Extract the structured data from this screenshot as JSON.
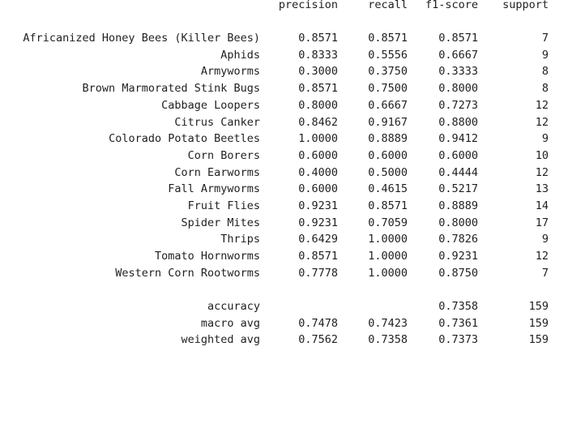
{
  "headers": {
    "precision": "precision",
    "recall": "recall",
    "f1": "f1-score",
    "support": "support"
  },
  "classes": [
    {
      "label": "Africanized Honey Bees (Killer Bees)",
      "precision": "0.8571",
      "recall": "0.8571",
      "f1": "0.8571",
      "support": "7"
    },
    {
      "label": "Aphids",
      "precision": "0.8333",
      "recall": "0.5556",
      "f1": "0.6667",
      "support": "9"
    },
    {
      "label": "Armyworms",
      "precision": "0.3000",
      "recall": "0.3750",
      "f1": "0.3333",
      "support": "8"
    },
    {
      "label": "Brown Marmorated Stink Bugs",
      "precision": "0.8571",
      "recall": "0.7500",
      "f1": "0.8000",
      "support": "8"
    },
    {
      "label": "Cabbage Loopers",
      "precision": "0.8000",
      "recall": "0.6667",
      "f1": "0.7273",
      "support": "12"
    },
    {
      "label": "Citrus Canker",
      "precision": "0.8462",
      "recall": "0.9167",
      "f1": "0.8800",
      "support": "12"
    },
    {
      "label": "Colorado Potato Beetles",
      "precision": "1.0000",
      "recall": "0.8889",
      "f1": "0.9412",
      "support": "9"
    },
    {
      "label": "Corn Borers",
      "precision": "0.6000",
      "recall": "0.6000",
      "f1": "0.6000",
      "support": "10"
    },
    {
      "label": "Corn Earworms",
      "precision": "0.4000",
      "recall": "0.5000",
      "f1": "0.4444",
      "support": "12"
    },
    {
      "label": "Fall Armyworms",
      "precision": "0.6000",
      "recall": "0.4615",
      "f1": "0.5217",
      "support": "13"
    },
    {
      "label": "Fruit Flies",
      "precision": "0.9231",
      "recall": "0.8571",
      "f1": "0.8889",
      "support": "14"
    },
    {
      "label": "Spider Mites",
      "precision": "0.9231",
      "recall": "0.7059",
      "f1": "0.8000",
      "support": "17"
    },
    {
      "label": "Thrips",
      "precision": "0.6429",
      "recall": "1.0000",
      "f1": "0.7826",
      "support": "9"
    },
    {
      "label": "Tomato Hornworms",
      "precision": "0.8571",
      "recall": "1.0000",
      "f1": "0.9231",
      "support": "12"
    },
    {
      "label": "Western Corn Rootworms",
      "precision": "0.7778",
      "recall": "1.0000",
      "f1": "0.8750",
      "support": "7"
    }
  ],
  "summary": {
    "accuracy": {
      "label": "accuracy",
      "f1": "0.7358",
      "support": "159"
    },
    "macro": {
      "label": "macro avg",
      "precision": "0.7478",
      "recall": "0.7423",
      "f1": "0.7361",
      "support": "159"
    },
    "weighted": {
      "label": "weighted avg",
      "precision": "0.7562",
      "recall": "0.7358",
      "f1": "0.7373",
      "support": "159"
    }
  }
}
